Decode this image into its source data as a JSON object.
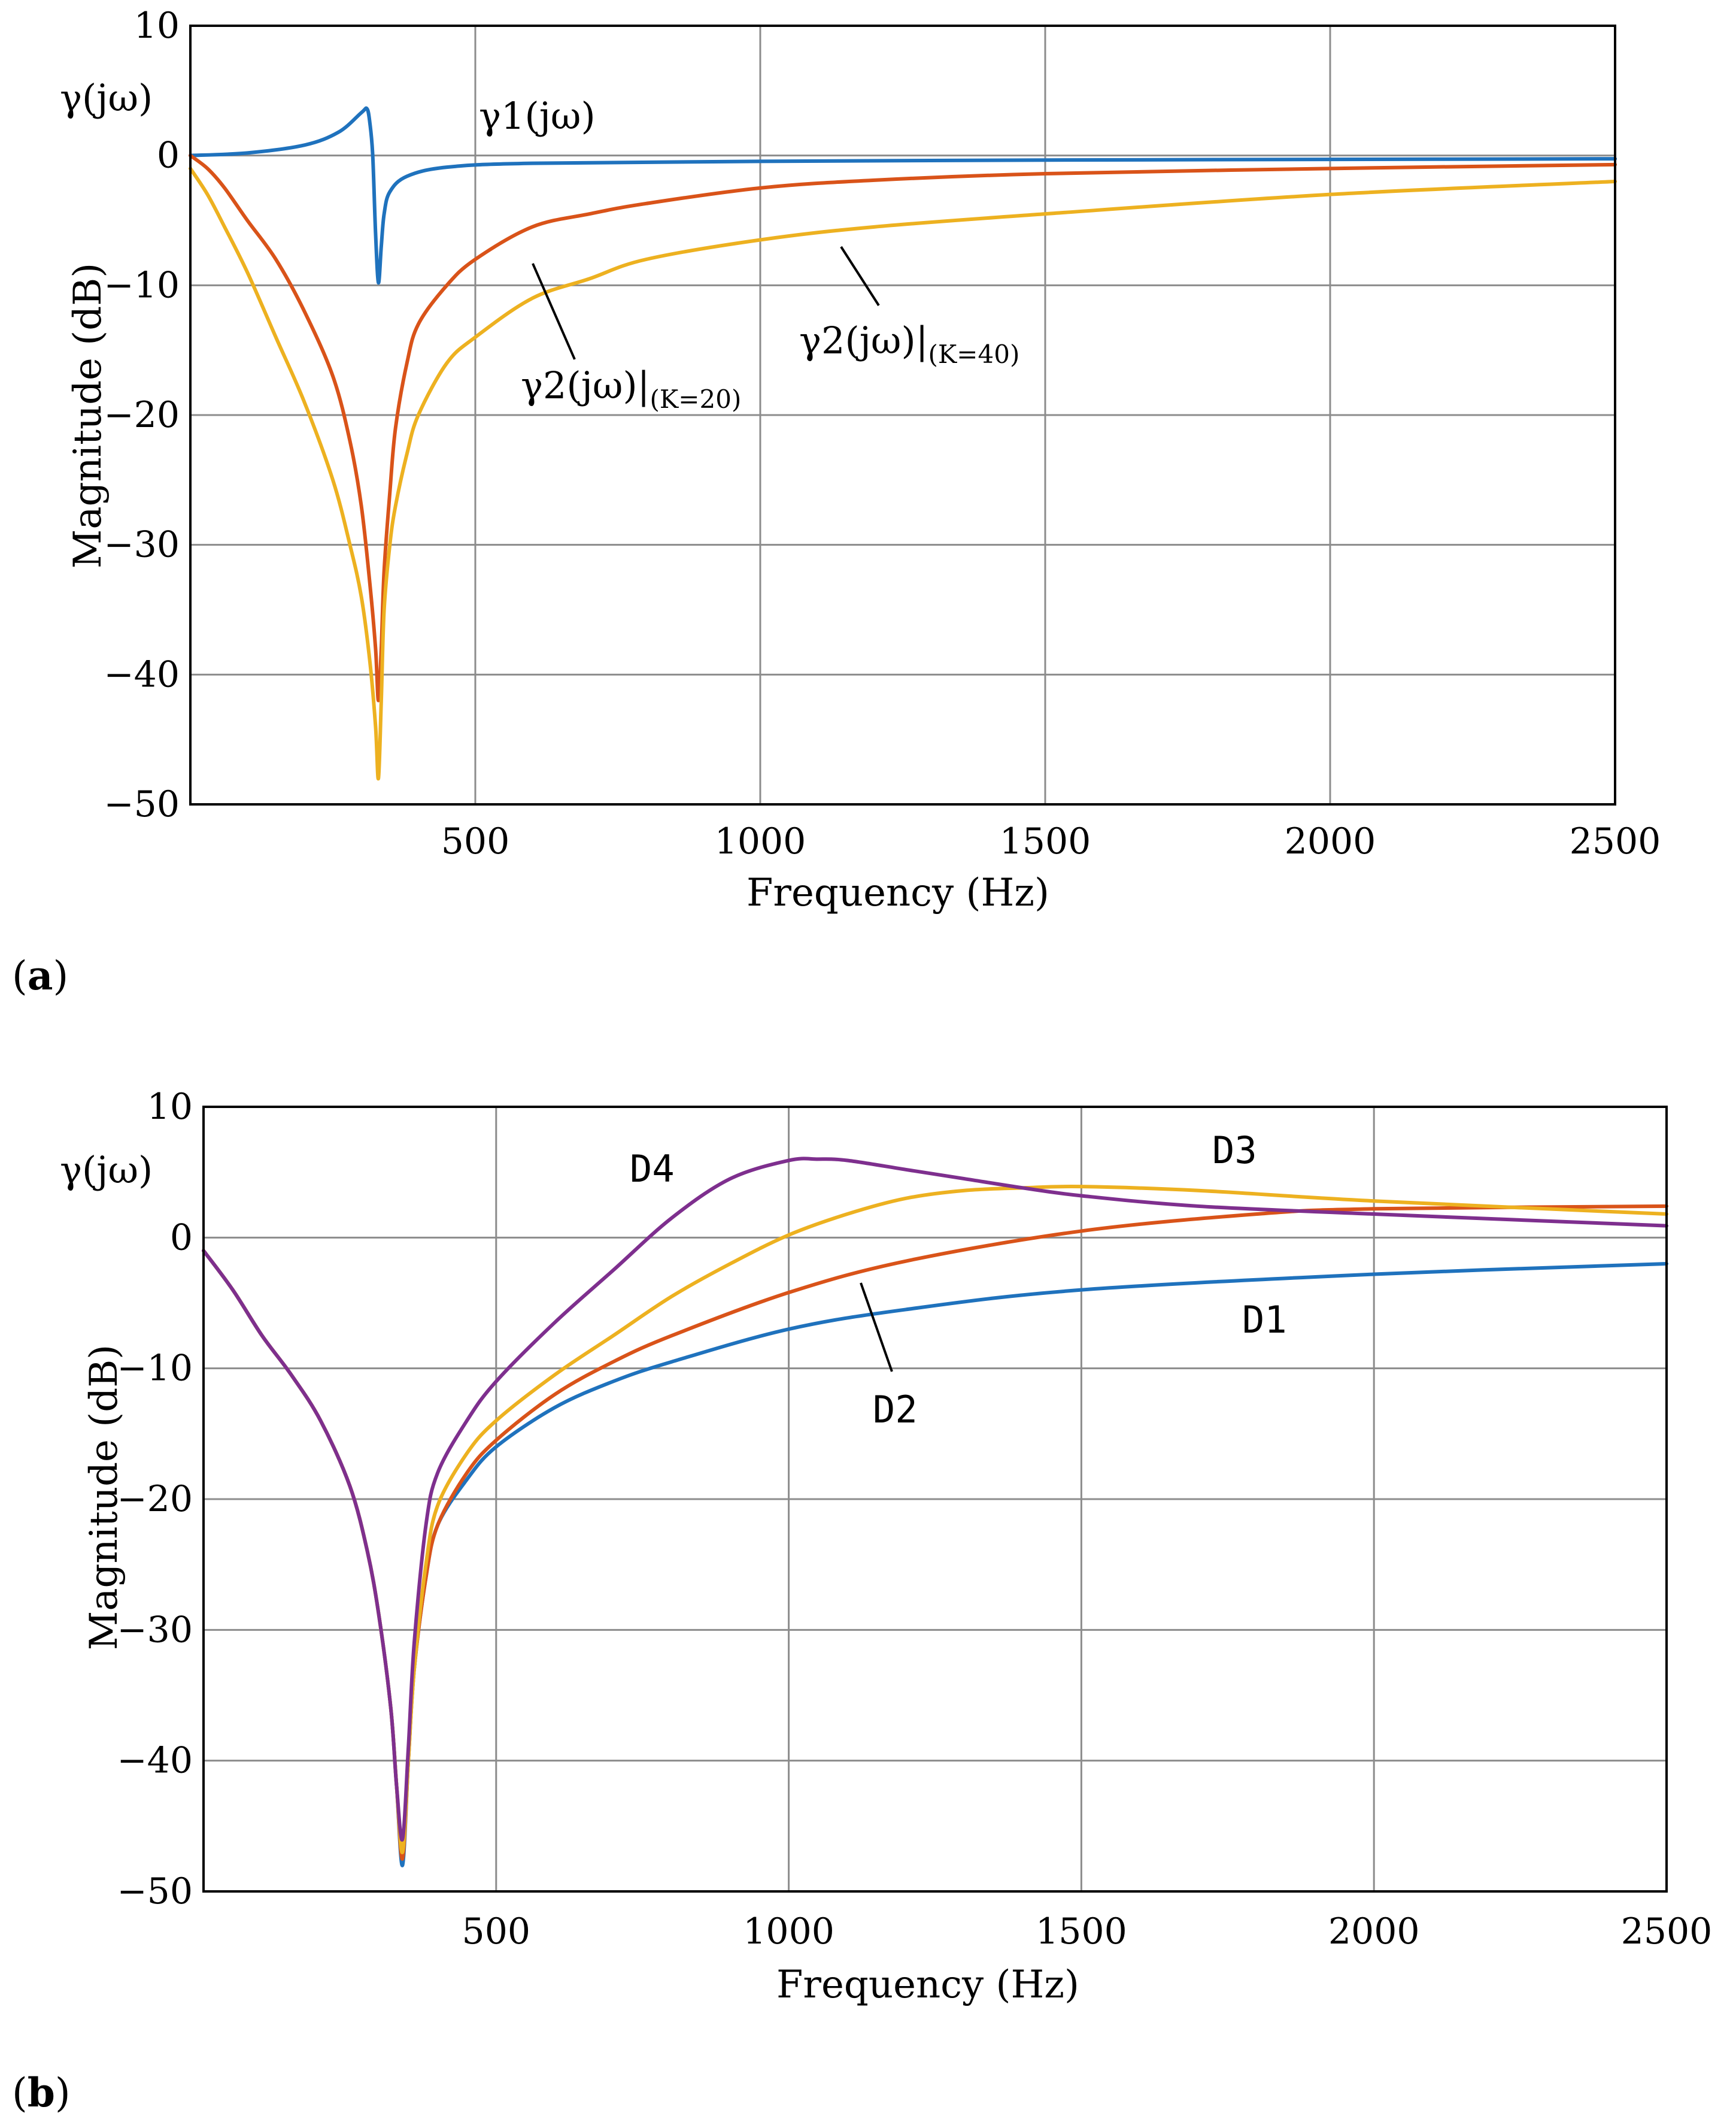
{
  "colors": {
    "blue": "#1f72bd",
    "red": "#d95319",
    "yellow": "#edb120",
    "purple": "#7e2f8e",
    "grid": "#8c8c8c",
    "axis": "#000000"
  },
  "chart_data": [
    {
      "id": "a",
      "type": "line",
      "panel_label": "a",
      "xlabel": "Frequency  (Hz)",
      "ylabel": "Magnitude (dB)",
      "corner_label": "γ(jω)",
      "xlim": [
        0,
        2500
      ],
      "ylim": [
        -50,
        10
      ],
      "xticks": [
        500,
        1000,
        1500,
        2000,
        2500
      ],
      "yticks": [
        10,
        0,
        -10,
        -20,
        -30,
        -40,
        -50
      ],
      "xtick_labels": [
        "500",
        "1000",
        "1500",
        "2000",
        "2500"
      ],
      "ytick_labels": [
        "10",
        "0",
        "−10",
        "−20",
        "−30",
        "−40",
        "−50"
      ],
      "grid": true,
      "series": [
        {
          "name": "γ1(jω)",
          "color": "blue",
          "x": [
            0,
            100,
            200,
            260,
            300,
            310,
            315,
            320,
            325,
            330,
            335,
            340,
            350,
            380,
            450,
            600,
            1000,
            1500,
            2000,
            2500
          ],
          "y": [
            0,
            0.2,
            0.8,
            1.8,
            3.3,
            3.6,
            2.5,
            0,
            -6,
            -9.8,
            -7,
            -4.5,
            -2.8,
            -1.6,
            -0.9,
            -0.6,
            -0.45,
            -0.35,
            -0.3,
            -0.25
          ]
        },
        {
          "name": "γ2(jω)|(K=20)",
          "color": "red",
          "x": [
            0,
            30,
            60,
            100,
            150,
            200,
            250,
            280,
            300,
            315,
            325,
            330,
            335,
            340,
            350,
            360,
            380,
            400,
            450,
            500,
            600,
            700,
            800,
            1000,
            1200,
            1500,
            2000,
            2500
          ],
          "y": [
            0,
            -1,
            -2.5,
            -5,
            -8,
            -12,
            -17,
            -22,
            -27,
            -33,
            -38,
            -42,
            -38,
            -32,
            -26,
            -21,
            -16,
            -13,
            -10,
            -8,
            -5.5,
            -4.5,
            -3.7,
            -2.5,
            -1.9,
            -1.4,
            -1.0,
            -0.7
          ]
        },
        {
          "name": "γ2(jω)|(K=40)",
          "color": "yellow",
          "x": [
            0,
            30,
            60,
            100,
            150,
            200,
            250,
            280,
            300,
            315,
            325,
            330,
            335,
            340,
            350,
            360,
            380,
            400,
            450,
            500,
            600,
            700,
            800,
            1000,
            1200,
            1500,
            2000,
            2500
          ],
          "y": [
            -1,
            -3,
            -5.5,
            -9,
            -14,
            -19,
            -25,
            -30,
            -34,
            -39,
            -44,
            -48,
            -42,
            -35,
            -30,
            -27,
            -23,
            -20,
            -16,
            -14,
            -11,
            -9.5,
            -8,
            -6.5,
            -5.5,
            -4.5,
            -3,
            -2
          ]
        }
      ],
      "annotations": {
        "g1": "γ1(jω)",
        "g2k20_main": "γ2(jω)|",
        "g2k20_sub": "(K=20)",
        "g2k40_main": "γ2(jω)|",
        "g2k40_sub": "(K=40)"
      }
    },
    {
      "id": "b",
      "type": "line",
      "panel_label": "b",
      "xlabel": "Frequency  (Hz)",
      "ylabel": "Magnitude (dB)",
      "corner_label": "γ(jω)",
      "xlim": [
        0,
        2500
      ],
      "ylim": [
        -50,
        10
      ],
      "xticks": [
        500,
        1000,
        1500,
        2000,
        2500
      ],
      "yticks": [
        10,
        0,
        -10,
        -20,
        -30,
        -40,
        -50
      ],
      "xtick_labels": [
        "500",
        "1000",
        "1500",
        "2000",
        "2500"
      ],
      "ytick_labels": [
        "10",
        "0",
        "−10",
        "−20",
        "−30",
        "−40",
        "−50"
      ],
      "grid": true,
      "series": [
        {
          "name": "D1",
          "color": "blue",
          "x": [
            0,
            50,
            100,
            150,
            200,
            250,
            280,
            300,
            320,
            330,
            340,
            350,
            360,
            380,
            400,
            450,
            500,
            600,
            700,
            800,
            1000,
            1200,
            1500,
            2000,
            2500
          ],
          "y": [
            -1,
            -4,
            -7.5,
            -10.5,
            -14,
            -19,
            -24,
            -29,
            -36,
            -42,
            -48,
            -40,
            -33,
            -26,
            -22,
            -18.5,
            -16,
            -13,
            -11,
            -9.5,
            -7,
            -5.5,
            -4,
            -2.8,
            -2
          ]
        },
        {
          "name": "D2",
          "color": "red",
          "x": [
            0,
            50,
            100,
            150,
            200,
            250,
            280,
            300,
            320,
            330,
            340,
            350,
            360,
            380,
            400,
            450,
            500,
            600,
            700,
            800,
            1000,
            1200,
            1500,
            1800,
            2000,
            2500
          ],
          "y": [
            -1,
            -4,
            -7.5,
            -10.5,
            -14,
            -19,
            -24,
            -29,
            -36,
            -42,
            -47.5,
            -40,
            -33,
            -26,
            -22,
            -18,
            -15.5,
            -12,
            -9.5,
            -7.5,
            -4.2,
            -1.8,
            0.5,
            1.8,
            2.2,
            2.4
          ]
        },
        {
          "name": "D3",
          "color": "yellow",
          "x": [
            0,
            50,
            100,
            150,
            200,
            250,
            280,
            300,
            320,
            330,
            340,
            350,
            360,
            380,
            400,
            450,
            500,
            600,
            700,
            800,
            900,
            1000,
            1100,
            1200,
            1300,
            1400,
            1500,
            1700,
            2000,
            2500
          ],
          "y": [
            -1,
            -4,
            -7.5,
            -10.5,
            -14,
            -19,
            -24,
            -29,
            -36,
            -42,
            -47,
            -40,
            -33,
            -25,
            -20.5,
            -16.5,
            -14,
            -10.5,
            -7.5,
            -4.5,
            -2,
            0.2,
            1.8,
            3,
            3.6,
            3.8,
            3.9,
            3.6,
            2.8,
            1.8
          ]
        },
        {
          "name": "D4",
          "color": "purple",
          "x": [
            0,
            50,
            100,
            150,
            200,
            250,
            280,
            300,
            320,
            330,
            340,
            350,
            360,
            380,
            400,
            450,
            500,
            600,
            700,
            800,
            900,
            1000,
            1050,
            1100,
            1200,
            1300,
            1400,
            1500,
            1700,
            2000,
            2500
          ],
          "y": [
            -1,
            -4,
            -7.5,
            -10.5,
            -14,
            -19,
            -24,
            -29,
            -36,
            -42,
            -46,
            -39,
            -31,
            -22,
            -18,
            -14,
            -11,
            -6.5,
            -2.5,
            1.5,
            4.5,
            5.9,
            6.0,
            5.9,
            5.2,
            4.5,
            3.8,
            3.2,
            2.4,
            1.8,
            0.9
          ]
        }
      ],
      "annotations": {
        "d1": "D1",
        "d2": "D2",
        "d3": "D3",
        "d4": "D4"
      }
    }
  ]
}
